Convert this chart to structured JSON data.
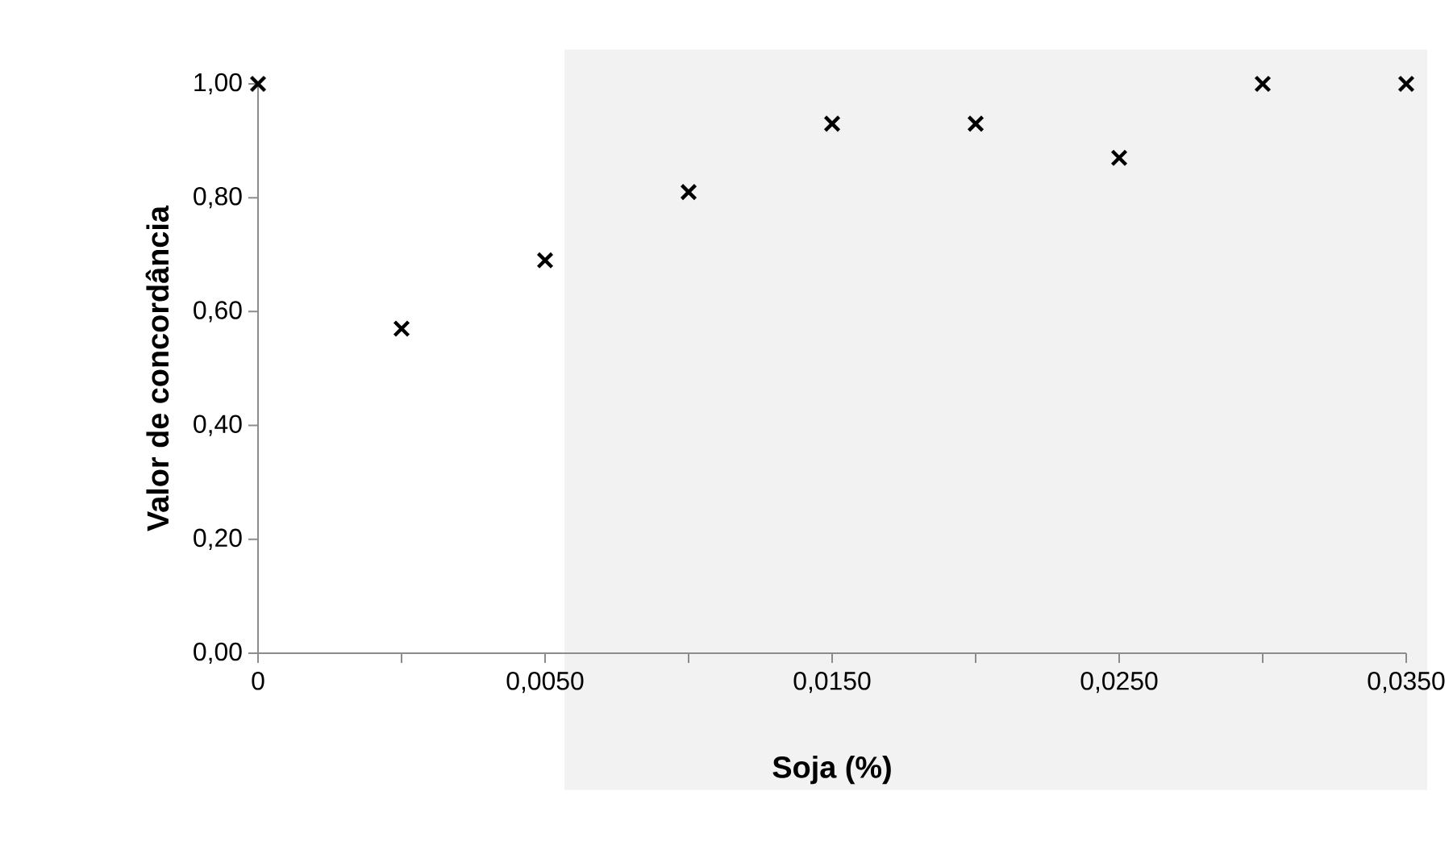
{
  "chart_data": {
    "type": "scatter",
    "xlabel": "Soja (%)",
    "ylabel": "Valor de concordância",
    "categories": [
      "0",
      null,
      "0,0050",
      null,
      "0,0150",
      null,
      "0,0250",
      null,
      "0,0350"
    ],
    "values": [
      1.0,
      0.57,
      0.69,
      0.81,
      0.93,
      0.93,
      0.87,
      1.0,
      1.0
    ],
    "color": "#000000",
    "marker": "cross",
    "ylim": [
      0,
      1
    ],
    "yticks": [
      {
        "value": 0,
        "label": "0,00"
      },
      {
        "value": 0.2,
        "label": "0,20"
      },
      {
        "value": 0.4,
        "label": "0,40"
      },
      {
        "value": 0.6,
        "label": "0,60"
      },
      {
        "value": 0.8,
        "label": "0,80"
      },
      {
        "value": 1,
        "label": "1,00"
      }
    ],
    "bands": [
      {
        "axis": "x",
        "from": "0,0050",
        "to": "0,0350",
        "color": "#f2f2f2"
      }
    ],
    "grid": false
  }
}
